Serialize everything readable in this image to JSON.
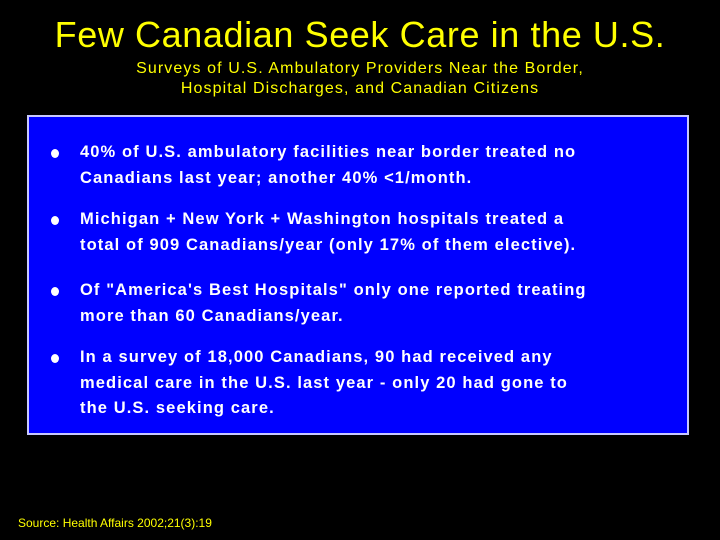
{
  "header": {
    "title": "Few Canadian Seek Care in the U.S.",
    "subtitle": [
      "Surveys of U.S. Ambulatory Providers Near the Border,",
      "Hospital Discharges, and Canadian Citizens"
    ]
  },
  "bullets": [
    [
      "40% of U.S. ambulatory facilities near border treated no",
      "Canadians last year; another 40% <1/month."
    ],
    [
      "Michigan + New York + Washington hospitals treated a",
      "total of 909 Canadians/year (only 17% of them elective)."
    ],
    [
      "Of \"America's Best Hospitals\" only one reported treating",
      "more than 60 Canadians/year."
    ],
    [
      "In a survey of 18,000 Canadians, 90 had received any",
      "medical care in the U.S. last year - only 20 had gone to",
      "the U.S. seeking care."
    ]
  ],
  "footer": {
    "source": "Source: Health Affairs 2002;21(3):19"
  }
}
